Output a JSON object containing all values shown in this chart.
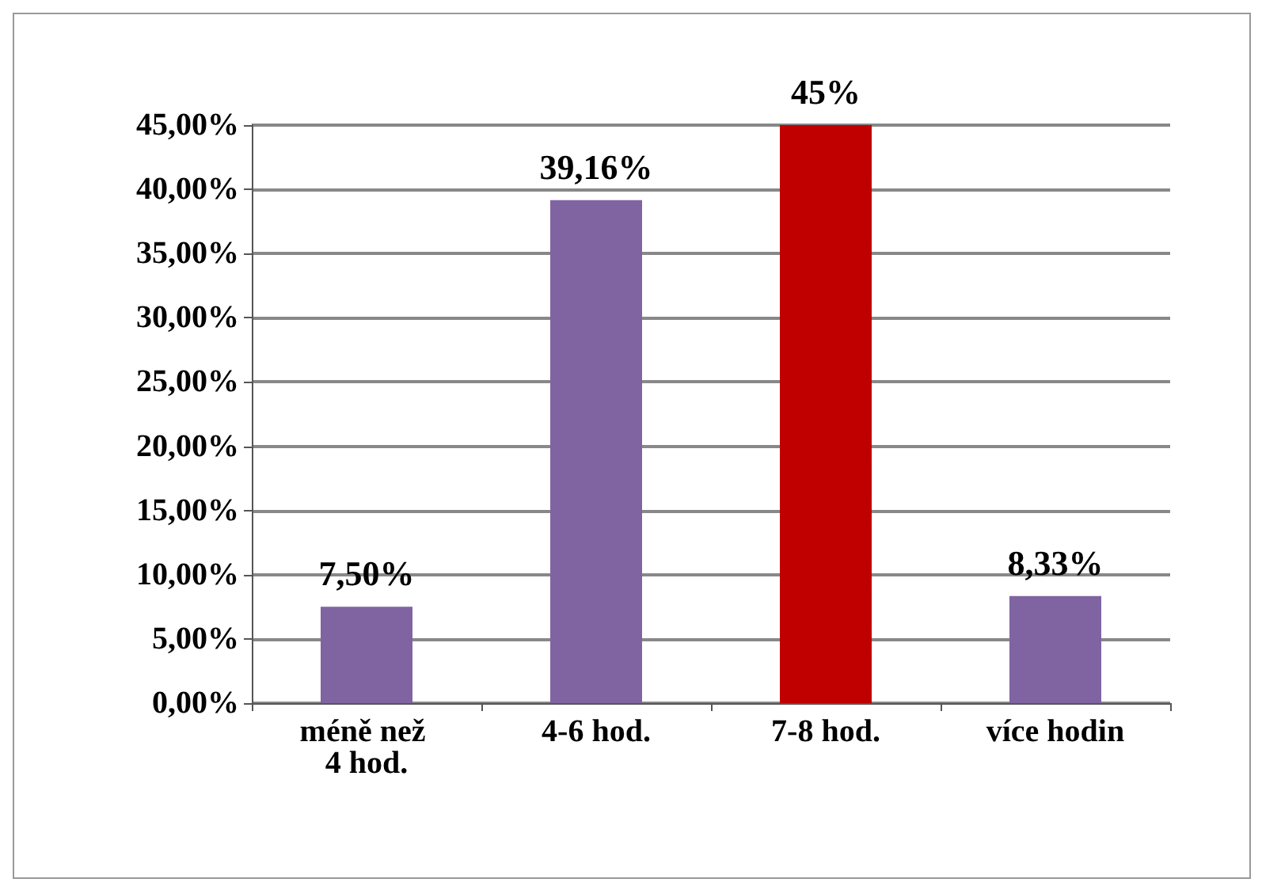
{
  "chart_data": {
    "type": "bar",
    "categories": [
      "méně než 4 hod.",
      "4-6 hod.",
      "7-8 hod.",
      "více hodin"
    ],
    "values": [
      7.5,
      39.16,
      45,
      8.33
    ],
    "colors": [
      "#8064a2",
      "#8064a2",
      "#c00000",
      "#8064a2"
    ],
    "value_labels": [
      "7,50%",
      "39,16%",
      "45%",
      "8,33%"
    ],
    "ylim": [
      0,
      45
    ],
    "yticks": [
      {
        "value": 0,
        "label": "0,00%"
      },
      {
        "value": 5,
        "label": "5,00%"
      },
      {
        "value": 10,
        "label": "10,00%"
      },
      {
        "value": 15,
        "label": "15,00%"
      },
      {
        "value": 20,
        "label": "20,00%"
      },
      {
        "value": 25,
        "label": "25,00%"
      },
      {
        "value": 30,
        "label": "30,00%"
      },
      {
        "value": 35,
        "label": "35,00%"
      },
      {
        "value": 40,
        "label": "40,00%"
      },
      {
        "value": 45,
        "label": "45,00%"
      }
    ],
    "grid": "y"
  }
}
